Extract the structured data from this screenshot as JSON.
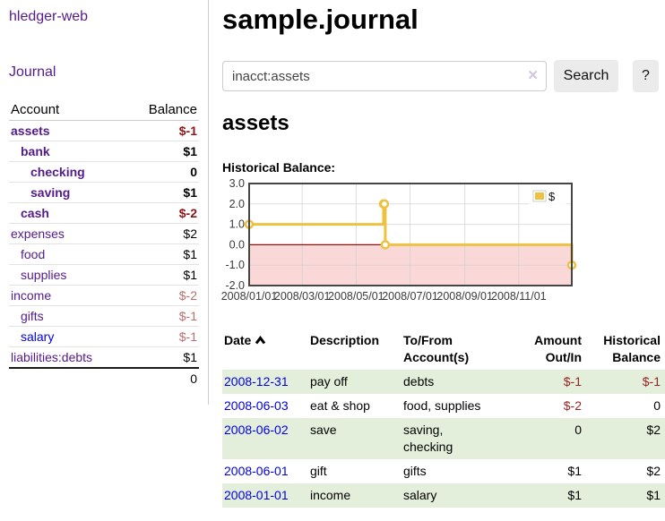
{
  "brand": {
    "title": "hledger-web"
  },
  "nav": {
    "journal": "Journal"
  },
  "sidebar": {
    "header": {
      "account": "Account",
      "balance": "Balance"
    },
    "accounts": [
      {
        "name": "assets",
        "balance": "$-1",
        "depth": 1,
        "bold": true,
        "name_color": "purple",
        "balance_color": "neg-strong"
      },
      {
        "name": "bank",
        "balance": "$1",
        "depth": 2,
        "bold": true,
        "name_color": "purple",
        "balance_color": "black"
      },
      {
        "name": "checking",
        "balance": "0",
        "depth": 3,
        "bold": true,
        "name_color": "purple",
        "balance_color": "black"
      },
      {
        "name": "saving",
        "balance": "$1",
        "depth": 3,
        "bold": true,
        "name_color": "purple",
        "balance_color": "black"
      },
      {
        "name": "cash",
        "balance": "$-2",
        "depth": 2,
        "bold": true,
        "name_color": "purple",
        "balance_color": "neg-strong"
      },
      {
        "name": "expenses",
        "balance": "$2",
        "depth": 1,
        "bold": false,
        "name_color": "purple",
        "balance_color": "black"
      },
      {
        "name": "food",
        "balance": "$1",
        "depth": 2,
        "bold": false,
        "name_color": "purple",
        "balance_color": "black"
      },
      {
        "name": "supplies",
        "balance": "$1",
        "depth": 2,
        "bold": false,
        "name_color": "purple",
        "balance_color": "black"
      },
      {
        "name": "income",
        "balance": "$-2",
        "depth": 1,
        "bold": false,
        "name_color": "purple",
        "balance_color": "neg-soft"
      },
      {
        "name": "gifts",
        "balance": "$-1",
        "depth": 2,
        "bold": false,
        "name_color": "purple",
        "balance_color": "neg-soft"
      },
      {
        "name": "salary",
        "balance": "$-1",
        "depth": 2,
        "bold": false,
        "name_color": "blue",
        "balance_color": "neg-soft"
      },
      {
        "name": "liabilities:debts",
        "balance": "$1",
        "depth": 1,
        "bold": false,
        "name_color": "purple",
        "balance_color": "black"
      }
    ],
    "total": "0"
  },
  "main": {
    "title": "sample.journal",
    "search": {
      "value": "inacct:assets",
      "clear_icon": "✕",
      "search_button": "Search",
      "help_button": "?"
    },
    "account_heading": "assets"
  },
  "chart_data": {
    "type": "line",
    "title": "Historical Balance:",
    "step": true,
    "x_range": [
      "2008-01-01",
      "2008-12-31"
    ],
    "ylim": [
      -2,
      3
    ],
    "yticks": [
      "3.0",
      "2.0",
      "1.0",
      "0.0",
      "-1.0",
      "-2.0"
    ],
    "xticks": [
      "2008/01/01",
      "2008/03/01",
      "2008/05/01",
      "2008/07/01",
      "2008/09/01",
      "2008/11/01"
    ],
    "legend": {
      "label": "$",
      "position": "top-right"
    },
    "series": [
      {
        "name": "$",
        "color": "#edc240",
        "points": [
          {
            "x": "2008-01-01",
            "y": 1
          },
          {
            "x": "2008-06-01",
            "y": 2
          },
          {
            "x": "2008-06-02",
            "y": 2
          },
          {
            "x": "2008-06-03",
            "y": 0
          },
          {
            "x": "2008-12-31",
            "y": -1
          }
        ]
      }
    ],
    "colors": {
      "negative_fill": "#fbd8d8",
      "zero_line": "#8b1010",
      "grid": "#cccccc",
      "border": "#454545",
      "marker_fill": "#ffffff"
    }
  },
  "register": {
    "headers": [
      {
        "label": "Date",
        "sort": "asc"
      },
      {
        "label": "Description"
      },
      {
        "label": "To/From\nAccount(s)"
      },
      {
        "label": "Amount\nOut/In",
        "align": "right"
      },
      {
        "label": "Historical\nBalance",
        "align": "right"
      }
    ],
    "rows": [
      {
        "date": "2008-12-31",
        "description": "pay off",
        "accounts": "debts",
        "amount": "$-1",
        "amount_neg": true,
        "balance": "$-1",
        "balance_neg": true
      },
      {
        "date": "2008-06-03",
        "description": "eat & shop",
        "accounts": "food, supplies",
        "amount": "$-2",
        "amount_neg": true,
        "balance": "0",
        "balance_neg": false
      },
      {
        "date": "2008-06-02",
        "description": "save",
        "accounts": "saving,\nchecking",
        "amount": "0",
        "amount_neg": false,
        "balance": "$2",
        "balance_neg": false
      },
      {
        "date": "2008-06-01",
        "description": "gift",
        "accounts": "gifts",
        "amount": "$1",
        "amount_neg": false,
        "balance": "$2",
        "balance_neg": false
      },
      {
        "date": "2008-01-01",
        "description": "income",
        "accounts": "salary",
        "amount": "$1",
        "amount_neg": false,
        "balance": "$1",
        "balance_neg": false
      }
    ]
  }
}
